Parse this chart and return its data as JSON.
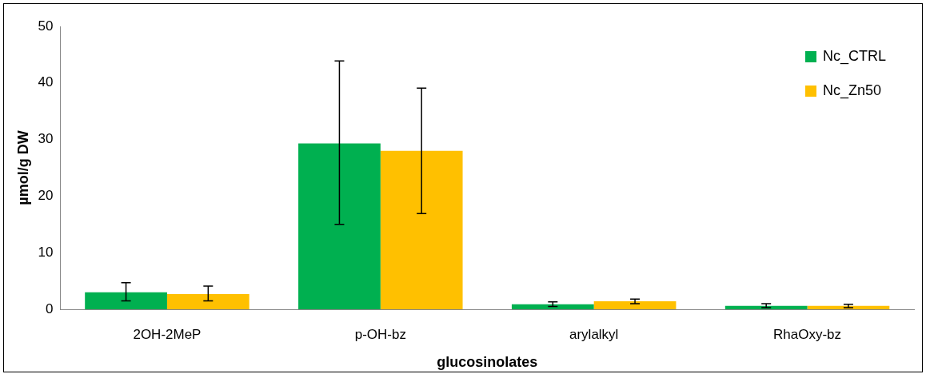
{
  "chart_data": {
    "type": "bar",
    "xlabel": "glucosinolates",
    "ylabel": "µmol/g DW",
    "categories": [
      "2OH-2MeP",
      "p-OH-bz",
      "arylalkyl",
      "RhaOxy-bz"
    ],
    "series": [
      {
        "name": "Nc_CTRL",
        "color": "#00b050",
        "values": [
          3.0,
          29.3,
          0.9,
          0.6
        ],
        "errors": [
          [
            1.5,
            4.7
          ],
          [
            15.0,
            43.9
          ],
          [
            0.5,
            1.3
          ],
          [
            0.3,
            1.0
          ]
        ]
      },
      {
        "name": "Nc_Zn50",
        "color": "#ffc000",
        "values": [
          2.7,
          28.0,
          1.4,
          0.6
        ],
        "errors": [
          [
            1.5,
            4.1
          ],
          [
            16.9,
            39.1
          ],
          [
            1.0,
            1.8
          ],
          [
            0.3,
            0.9
          ]
        ]
      }
    ],
    "ylim": [
      0,
      50
    ],
    "yticks": [
      0,
      10,
      20,
      30,
      40,
      50
    ],
    "grid": false,
    "legend": "top right"
  }
}
